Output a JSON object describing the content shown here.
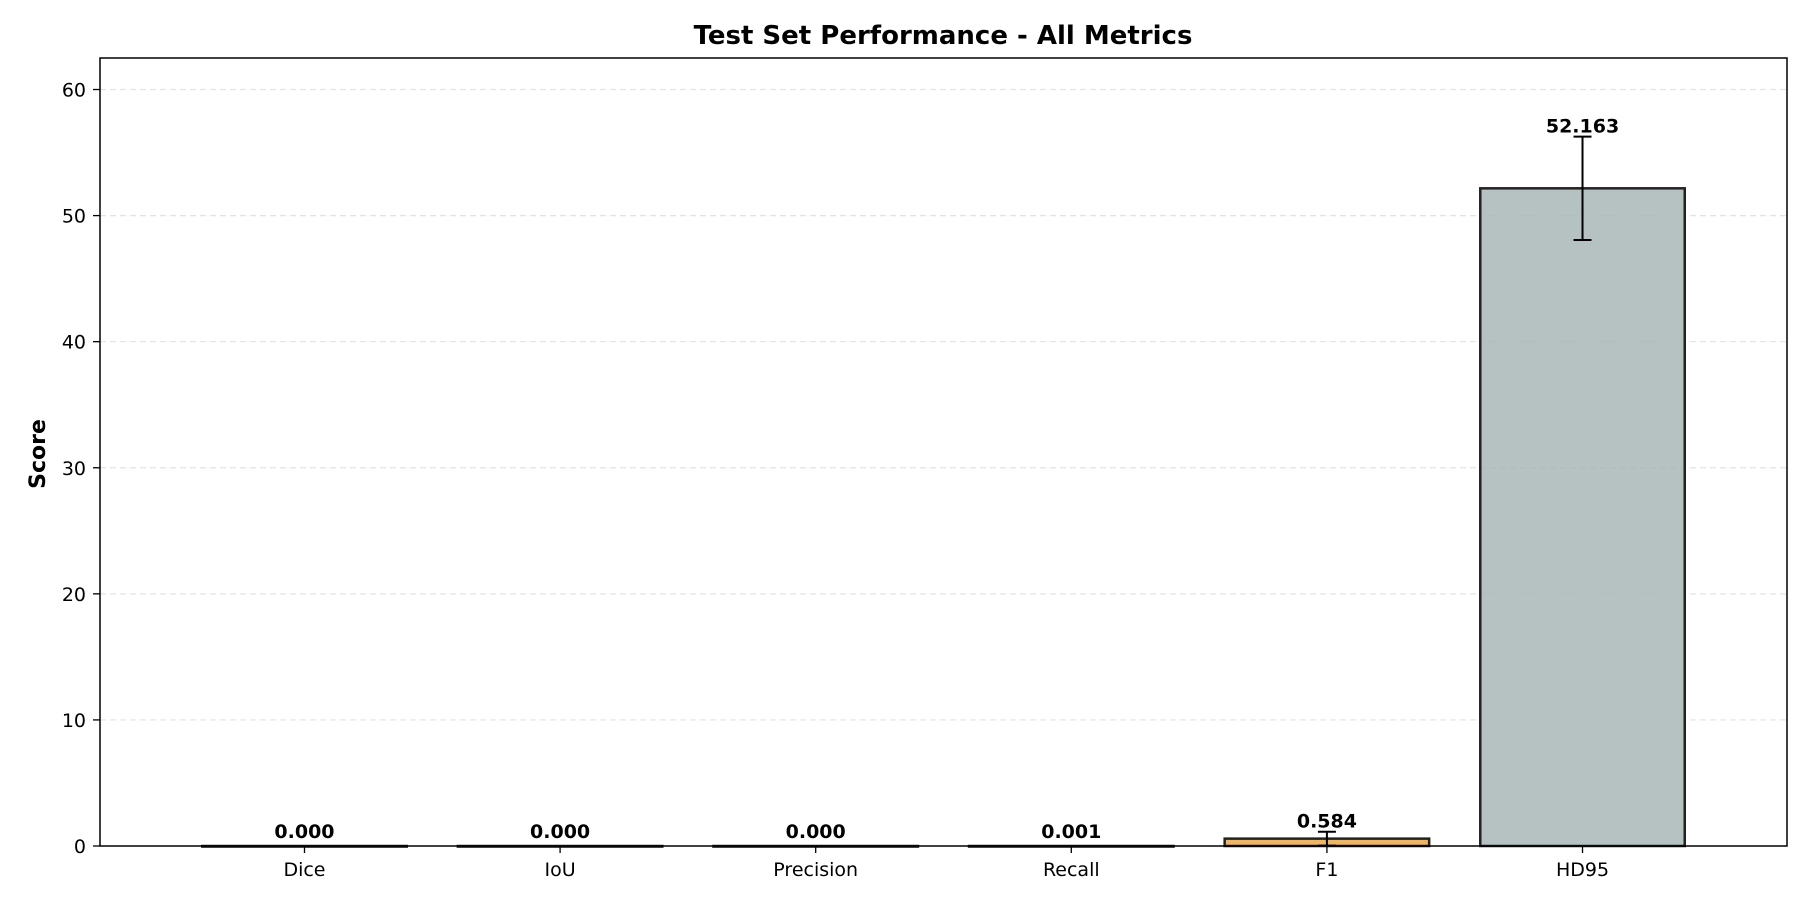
{
  "chart_data": {
    "type": "bar",
    "title": "Test Set Performance - All Metrics",
    "xlabel": "",
    "ylabel": "Score",
    "categories": [
      "Dice",
      "IoU",
      "Precision",
      "Recall",
      "F1",
      "HD95"
    ],
    "values": [
      0.0,
      0.0,
      0.0,
      0.001,
      0.584,
      52.163
    ],
    "value_labels": [
      "0.000",
      "0.000",
      "0.000",
      "0.001",
      "0.584",
      "52.163"
    ],
    "errors": [
      0.0,
      0.0,
      0.0,
      0.0,
      0.55,
      4.1
    ],
    "ylim": [
      0,
      62.5
    ],
    "yticks": [
      0,
      10,
      20,
      30,
      40,
      50,
      60
    ],
    "grid": "y-dashed",
    "bar_colors": [
      "#3b6fb6",
      "#8e44ad",
      "#27ae60",
      "#e67e22",
      "#e9a94b",
      "#a9b6b6"
    ],
    "bar_edge_color": "#222222",
    "legend": "none"
  }
}
